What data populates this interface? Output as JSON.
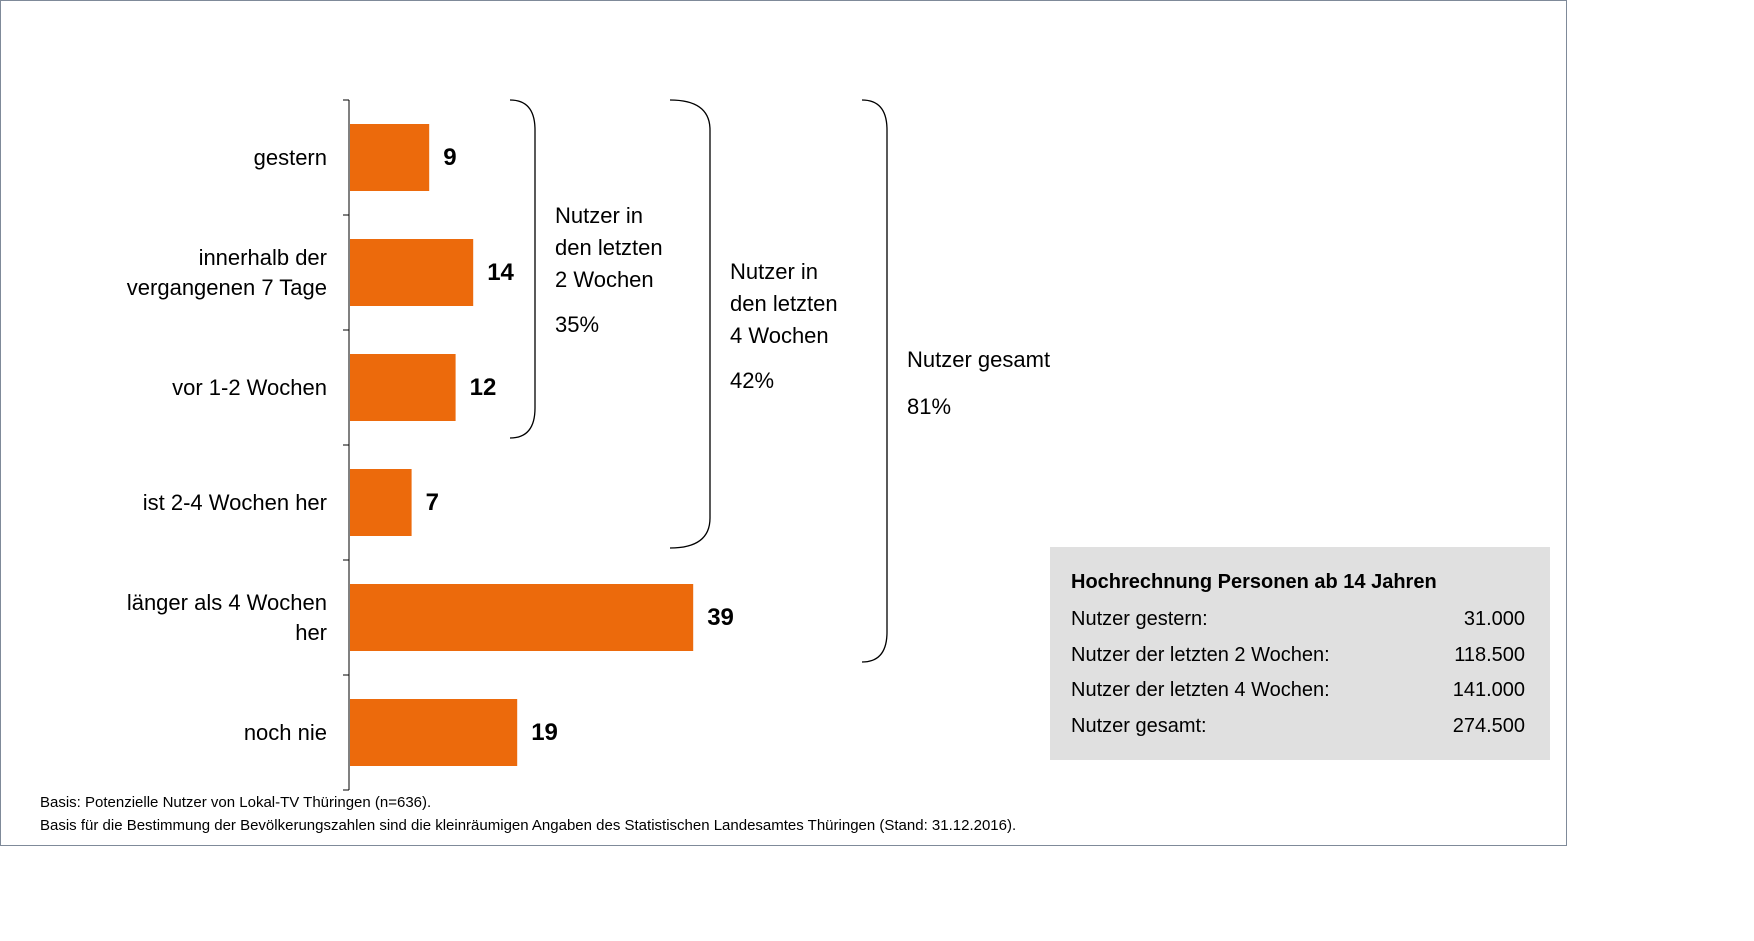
{
  "chart_data": {
    "type": "bar",
    "categories": [
      "gestern",
      "innerhalb der\nvergangenen 7 Tage",
      "vor 1-2 Wochen",
      "ist 2-4 Wochen her",
      "länger als 4 Wochen\nher",
      "noch nie"
    ],
    "values": [
      9,
      14,
      12,
      7,
      39,
      19
    ],
    "color": "#ec6a0c",
    "annotations": [
      {
        "text": "Nutzer in\nden letzten\n2 Wochen",
        "value_label": "35%"
      },
      {
        "text": "Nutzer in\nden letzten\n4 Wochen",
        "value_label": "42%"
      },
      {
        "text": "Nutzer gesamt",
        "value_label": "81%"
      }
    ],
    "box": {
      "title": "Hochrechnung Personen ab 14 Jahren",
      "rows": [
        [
          "Nutzer gestern:",
          "31.000"
        ],
        [
          "Nutzer der letzten 2 Wochen:",
          "118.500"
        ],
        [
          "Nutzer der letzten 4 Wochen:",
          "141.000"
        ],
        [
          "Nutzer gesamt:",
          "274.500"
        ]
      ]
    },
    "footnotes": [
      "Basis: Potenzielle Nutzer von Lokal-TV Thüringen (n=636).",
      "Basis für die Bestimmung der Bevölkerungszahlen sind die kleinräumigen Angaben des Statistischen Landesamtes Thüringen (Stand: 31.12.2016)."
    ]
  }
}
